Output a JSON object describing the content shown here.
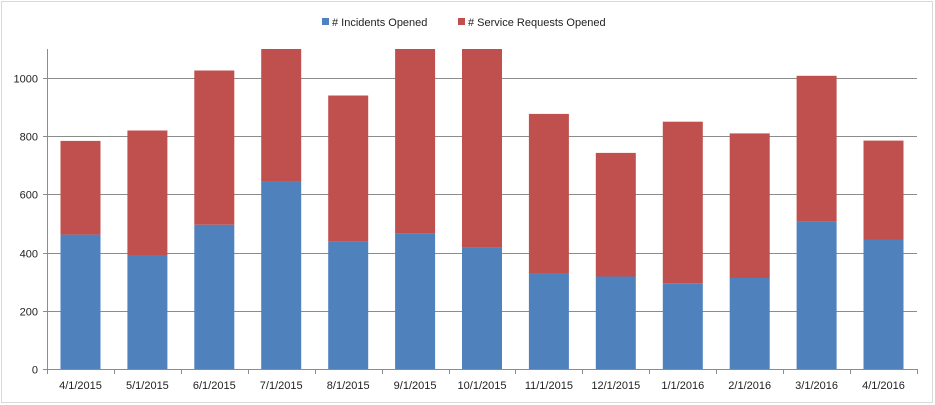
{
  "chart_data": {
    "type": "bar",
    "stacked": true,
    "title": "",
    "xlabel": "",
    "ylabel": "",
    "ylim": [
      0,
      1100
    ],
    "yticks": [
      0,
      200,
      400,
      600,
      800,
      1000
    ],
    "grid": true,
    "legend": "top-center",
    "categories": [
      "4/1/2015",
      "5/1/2015",
      "6/1/2015",
      "7/1/2015",
      "8/1/2015",
      "9/1/2015",
      "10/1/2015",
      "11/1/2015",
      "12/1/2015",
      "1/1/2016",
      "2/1/2016",
      "3/1/2016",
      "4/1/2016"
    ],
    "series": [
      {
        "name": "# Incidents Opened",
        "color": "#4f81bd",
        "values": [
          462,
          392,
          496,
          643,
          438,
          465,
          418,
          327,
          318,
          295,
          313,
          506,
          445
        ]
      },
      {
        "name": "# Service Requests Opened",
        "color": "#c0504d",
        "values": [
          322,
          428,
          530,
          457,
          502,
          635,
          682,
          550,
          425,
          555,
          497,
          502,
          340
        ]
      }
    ]
  }
}
